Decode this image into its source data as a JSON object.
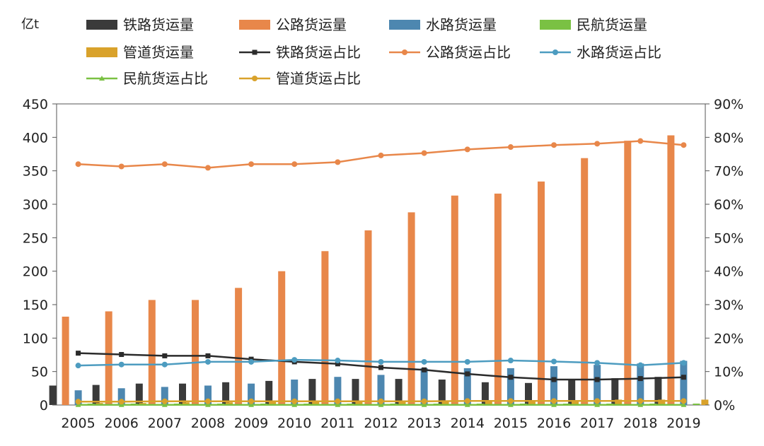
{
  "chart_data": {
    "type": "bar",
    "unit_label": "亿t",
    "categories": [
      "2005",
      "2006",
      "2007",
      "2008",
      "2009",
      "2010",
      "2011",
      "2012",
      "2013",
      "2014",
      "2015",
      "2016",
      "2017",
      "2018",
      "2019"
    ],
    "y_left": {
      "min": 0,
      "max": 450,
      "ticks": [
        "0",
        "50",
        "100",
        "150",
        "200",
        "250",
        "300",
        "350",
        "400",
        "450"
      ]
    },
    "y_right": {
      "min": 0,
      "max": 90,
      "ticks": [
        "0%",
        "10%",
        "20%",
        "30%",
        "40%",
        "50%",
        "60%",
        "70%",
        "80%",
        "90%"
      ]
    },
    "bar_series": [
      {
        "name": "铁路货运量",
        "color": "#3a3a3a",
        "values": [
          29,
          30,
          32,
          32,
          34,
          36,
          39,
          39,
          39,
          38,
          34,
          33,
          37,
          40,
          42
        ]
      },
      {
        "name": "公路货运量",
        "color": "#e8874a",
        "values": [
          132,
          140,
          157,
          157,
          175,
          200,
          230,
          261,
          288,
          313,
          316,
          334,
          369,
          395,
          403
        ]
      },
      {
        "name": "水路货运量",
        "color": "#4d87b0",
        "values": [
          22,
          25,
          27,
          29,
          32,
          38,
          42,
          45,
          55,
          55,
          55,
          58,
          60,
          62,
          66
        ]
      },
      {
        "name": "民航货运量",
        "color": "#7ac143",
        "values": [
          0.3,
          0.3,
          0.4,
          0.4,
          0.4,
          0.6,
          0.6,
          0.5,
          0.6,
          0.6,
          0.6,
          0.7,
          0.7,
          0.7,
          0.8
        ]
      },
      {
        "name": "管道货运量",
        "color": "#d9a22b",
        "values": [
          3,
          3,
          4,
          4,
          5,
          5,
          6,
          6,
          6,
          7,
          7,
          7,
          8,
          8,
          8
        ]
      }
    ],
    "line_series": [
      {
        "name": "铁路货运占比",
        "color": "#2b2b2b",
        "marker": "square",
        "values": [
          15.5,
          15.1,
          14.7,
          14.7,
          13.7,
          12.9,
          12.3,
          11.2,
          10.5,
          9.3,
          8.3,
          7.6,
          7.6,
          7.9,
          8.3
        ]
      },
      {
        "name": "公路货运占比",
        "color": "#e8874a",
        "marker": "circle",
        "values": [
          72,
          71.3,
          72,
          70.9,
          72,
          72,
          72.6,
          74.6,
          75.3,
          76.4,
          77.1,
          77.7,
          78.1,
          78.9,
          77.7
        ]
      },
      {
        "name": "水路货运占比",
        "color": "#4d9cc0",
        "marker": "circle",
        "values": [
          11.8,
          12.1,
          12.1,
          12.9,
          12.9,
          13.5,
          13.3,
          12.9,
          12.9,
          12.9,
          13.3,
          13,
          12.6,
          11.9,
          12.6
        ]
      },
      {
        "name": "民航货运占比",
        "color": "#7ac143",
        "marker": "triangle",
        "values": [
          0.05,
          0.05,
          0.05,
          0.05,
          0.05,
          0.05,
          0.05,
          0.05,
          0.05,
          0.05,
          0.05,
          0.05,
          0.05,
          0.05,
          0.05
        ]
      },
      {
        "name": "管道货运占比",
        "color": "#d9a22b",
        "marker": "circle",
        "values": [
          1,
          1,
          1.1,
          1.1,
          1.1,
          1.1,
          1.1,
          1.1,
          1.1,
          1.2,
          1.2,
          1.2,
          1.2,
          1.2,
          1.2
        ]
      }
    ],
    "legend": {
      "position": "top"
    }
  }
}
